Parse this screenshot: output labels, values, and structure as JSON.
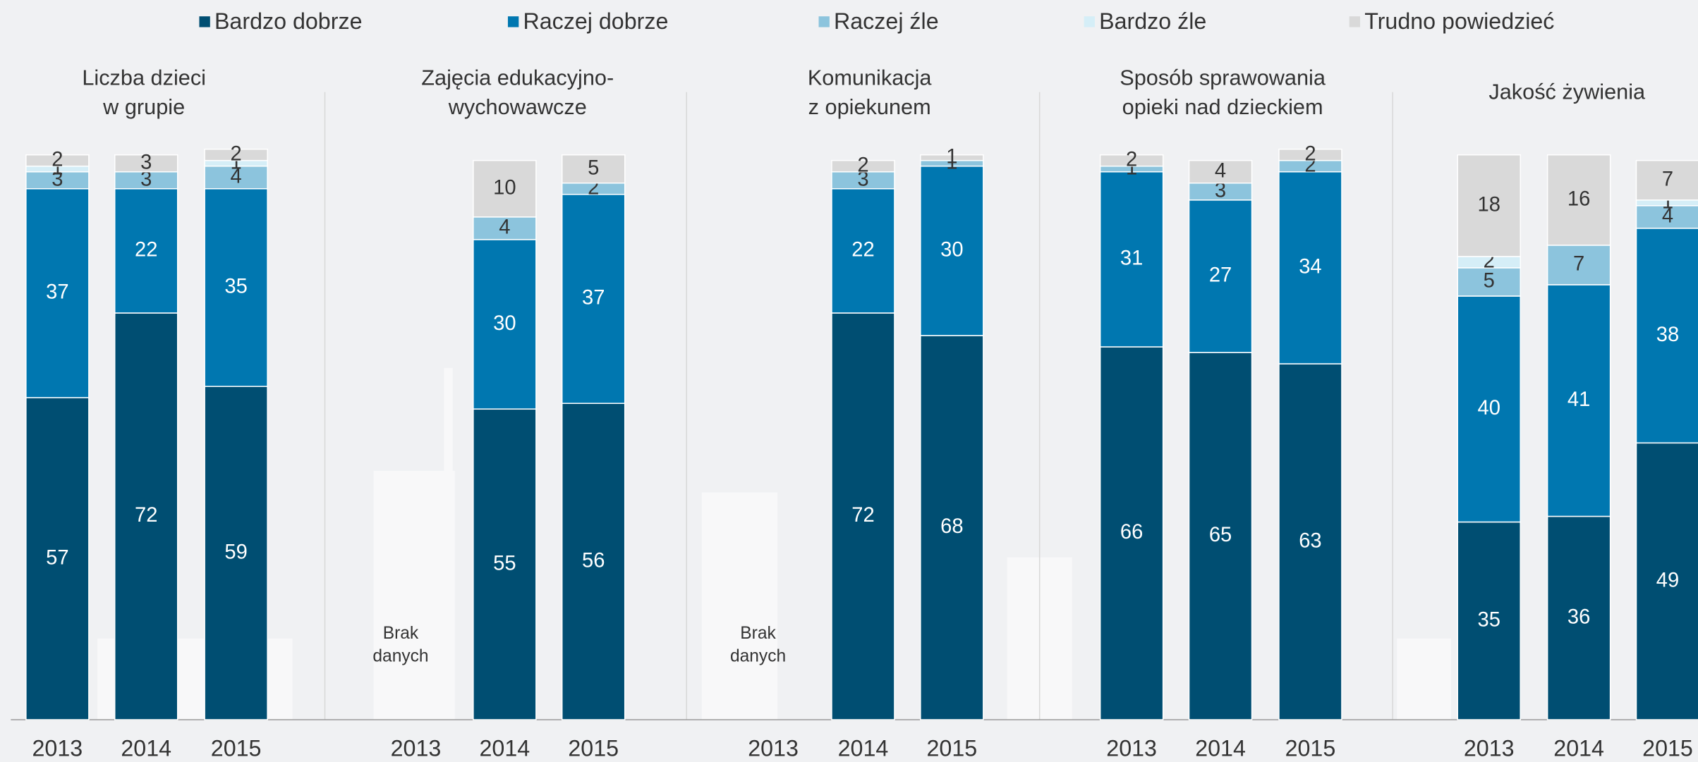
{
  "chart_data": [
    {
      "type": "bar",
      "stacked": true,
      "title": [
        "Liczba dzieci",
        "w grupie"
      ],
      "categories": [
        "2013",
        "2014",
        "2015"
      ],
      "ylim": [
        0,
        100
      ],
      "series": [
        {
          "name": "Bardzo dobrze",
          "color": "#004e72",
          "values": [
            57,
            72,
            59
          ]
        },
        {
          "name": "Raczej dobrze",
          "color": "#0077b0",
          "values": [
            37,
            22,
            35
          ]
        },
        {
          "name": "Raczej źle",
          "color": "#8cc4dd",
          "values": [
            3,
            3,
            4
          ]
        },
        {
          "name": "Bardzo źle",
          "color": "#d5eef7",
          "values": [
            1,
            null,
            1
          ]
        },
        {
          "name": "Trudno powiedzieć",
          "color": "#d9d9d9",
          "values": [
            2,
            3,
            2
          ]
        }
      ]
    },
    {
      "type": "bar",
      "stacked": true,
      "title": [
        "Zajęcia edukacyjno-",
        "wychowawcze"
      ],
      "categories": [
        "2013",
        "2014",
        "2015"
      ],
      "ylim": [
        0,
        100
      ],
      "note": [
        "Brak",
        "danych"
      ],
      "series": [
        {
          "name": "Bardzo dobrze",
          "color": "#004e72",
          "values": [
            null,
            55,
            56
          ]
        },
        {
          "name": "Raczej dobrze",
          "color": "#0077b0",
          "values": [
            null,
            30,
            37
          ]
        },
        {
          "name": "Raczej źle",
          "color": "#8cc4dd",
          "values": [
            null,
            4,
            2
          ]
        },
        {
          "name": "Bardzo źle",
          "color": "#d5eef7",
          "values": [
            null,
            null,
            null
          ]
        },
        {
          "name": "Trudno powiedzieć",
          "color": "#d9d9d9",
          "values": [
            null,
            10,
            5
          ]
        }
      ]
    },
    {
      "type": "bar",
      "stacked": true,
      "title": [
        "Komunikacja",
        "z opiekunem"
      ],
      "categories": [
        "2013",
        "2014",
        "2015"
      ],
      "ylim": [
        0,
        100
      ],
      "note": [
        "Brak",
        "danych"
      ],
      "series": [
        {
          "name": "Bardzo dobrze",
          "color": "#004e72",
          "values": [
            null,
            72,
            68
          ]
        },
        {
          "name": "Raczej dobrze",
          "color": "#0077b0",
          "values": [
            null,
            22,
            30
          ]
        },
        {
          "name": "Raczej źle",
          "color": "#8cc4dd",
          "values": [
            null,
            3,
            1
          ]
        },
        {
          "name": "Bardzo źle",
          "color": "#d5eef7",
          "values": [
            null,
            null,
            null
          ]
        },
        {
          "name": "Trudno powiedzieć",
          "color": "#d9d9d9",
          "values": [
            null,
            2,
            1
          ]
        }
      ]
    },
    {
      "type": "bar",
      "stacked": true,
      "title": [
        "Sposób sprawowania",
        "opieki  nad dzieckiem"
      ],
      "categories": [
        "2013",
        "2014",
        "2015"
      ],
      "ylim": [
        0,
        100
      ],
      "series": [
        {
          "name": "Bardzo dobrze",
          "color": "#004e72",
          "values": [
            66,
            65,
            63
          ]
        },
        {
          "name": "Raczej dobrze",
          "color": "#0077b0",
          "values": [
            31,
            27,
            34
          ]
        },
        {
          "name": "Raczej źle",
          "color": "#8cc4dd",
          "values": [
            1,
            3,
            2
          ]
        },
        {
          "name": "Bardzo źle",
          "color": "#d5eef7",
          "values": [
            null,
            null,
            null
          ]
        },
        {
          "name": "Trudno powiedzieć",
          "color": "#d9d9d9",
          "values": [
            2,
            4,
            2
          ]
        }
      ]
    },
    {
      "type": "bar",
      "stacked": true,
      "title": [
        "Jakość żywienia"
      ],
      "categories": [
        "2013",
        "2014",
        "2015"
      ],
      "ylim": [
        0,
        100
      ],
      "series": [
        {
          "name": "Bardzo dobrze",
          "color": "#004e72",
          "values": [
            35,
            36,
            49
          ]
        },
        {
          "name": "Raczej dobrze",
          "color": "#0077b0",
          "values": [
            40,
            41,
            38
          ]
        },
        {
          "name": "Raczej źle",
          "color": "#8cc4dd",
          "values": [
            5,
            7,
            4
          ]
        },
        {
          "name": "Bardzo źle",
          "color": "#d5eef7",
          "values": [
            2,
            null,
            1
          ]
        },
        {
          "name": "Trudno powiedzieć",
          "color": "#d9d9d9",
          "values": [
            18,
            16,
            7
          ]
        }
      ]
    }
  ]
}
